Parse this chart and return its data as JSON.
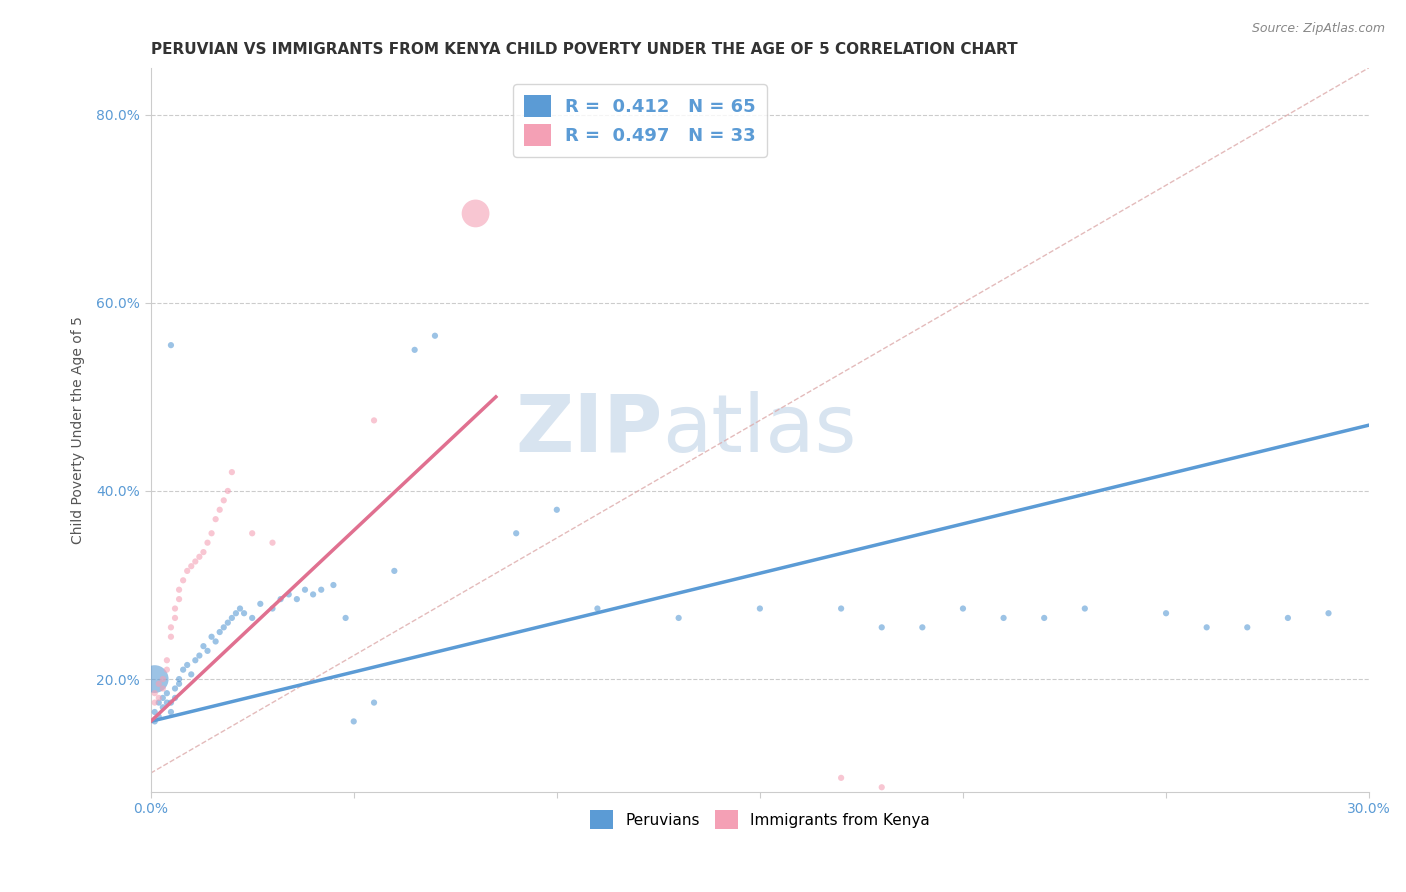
{
  "title": "PERUVIAN VS IMMIGRANTS FROM KENYA CHILD POVERTY UNDER THE AGE OF 5 CORRELATION CHART",
  "source": "Source: ZipAtlas.com",
  "xlabel": "",
  "ylabel": "Child Poverty Under the Age of 5",
  "xlim": [
    0.0,
    0.3
  ],
  "ylim": [
    0.08,
    0.85
  ],
  "xticks": [
    0.0,
    0.05,
    0.1,
    0.15,
    0.2,
    0.25,
    0.3
  ],
  "xticklabels": [
    "0.0%",
    "",
    "",
    "",
    "",
    "",
    "30.0%"
  ],
  "yticks": [
    0.2,
    0.4,
    0.6,
    0.8
  ],
  "yticklabels": [
    "20.0%",
    "40.0%",
    "60.0%",
    "80.0%"
  ],
  "R_blue": 0.412,
  "N_blue": 65,
  "R_pink": 0.497,
  "N_pink": 33,
  "blue_color": "#5b9bd5",
  "pink_color": "#f4a0b5",
  "pink_line_color": "#e07090",
  "blue_scatter": {
    "x": [
      0.001,
      0.001,
      0.002,
      0.002,
      0.003,
      0.003,
      0.004,
      0.004,
      0.005,
      0.005,
      0.006,
      0.006,
      0.007,
      0.007,
      0.008,
      0.009,
      0.01,
      0.011,
      0.012,
      0.013,
      0.014,
      0.015,
      0.016,
      0.017,
      0.018,
      0.019,
      0.02,
      0.021,
      0.022,
      0.023,
      0.025,
      0.027,
      0.03,
      0.032,
      0.034,
      0.036,
      0.038,
      0.04,
      0.042,
      0.045,
      0.048,
      0.05,
      0.055,
      0.06,
      0.065,
      0.07,
      0.09,
      0.1,
      0.11,
      0.13,
      0.15,
      0.17,
      0.18,
      0.19,
      0.2,
      0.21,
      0.22,
      0.23,
      0.25,
      0.26,
      0.27,
      0.28,
      0.29,
      0.005,
      0.001
    ],
    "y": [
      0.155,
      0.165,
      0.16,
      0.175,
      0.17,
      0.18,
      0.175,
      0.185,
      0.165,
      0.175,
      0.18,
      0.19,
      0.195,
      0.2,
      0.21,
      0.215,
      0.205,
      0.22,
      0.225,
      0.235,
      0.23,
      0.245,
      0.24,
      0.25,
      0.255,
      0.26,
      0.265,
      0.27,
      0.275,
      0.27,
      0.265,
      0.28,
      0.275,
      0.285,
      0.29,
      0.285,
      0.295,
      0.29,
      0.295,
      0.3,
      0.265,
      0.155,
      0.175,
      0.315,
      0.55,
      0.565,
      0.355,
      0.38,
      0.275,
      0.265,
      0.275,
      0.275,
      0.255,
      0.255,
      0.275,
      0.265,
      0.265,
      0.275,
      0.27,
      0.255,
      0.255,
      0.265,
      0.27,
      0.555,
      0.2
    ],
    "sizes": [
      20,
      20,
      20,
      20,
      20,
      20,
      20,
      20,
      20,
      20,
      20,
      20,
      20,
      20,
      20,
      20,
      20,
      20,
      20,
      20,
      20,
      20,
      20,
      20,
      20,
      20,
      20,
      20,
      20,
      20,
      20,
      20,
      20,
      20,
      20,
      20,
      20,
      20,
      20,
      20,
      20,
      20,
      20,
      20,
      20,
      20,
      20,
      20,
      20,
      20,
      20,
      20,
      20,
      20,
      20,
      20,
      20,
      20,
      20,
      20,
      20,
      20,
      20,
      20,
      400
    ]
  },
  "pink_scatter": {
    "x": [
      0.001,
      0.001,
      0.002,
      0.002,
      0.003,
      0.003,
      0.004,
      0.004,
      0.005,
      0.005,
      0.006,
      0.006,
      0.007,
      0.007,
      0.008,
      0.009,
      0.01,
      0.011,
      0.012,
      0.013,
      0.014,
      0.015,
      0.016,
      0.017,
      0.018,
      0.019,
      0.02,
      0.025,
      0.03,
      0.055,
      0.17,
      0.18,
      0.08
    ],
    "y": [
      0.175,
      0.185,
      0.18,
      0.195,
      0.19,
      0.2,
      0.21,
      0.22,
      0.245,
      0.255,
      0.265,
      0.275,
      0.285,
      0.295,
      0.305,
      0.315,
      0.32,
      0.325,
      0.33,
      0.335,
      0.345,
      0.355,
      0.37,
      0.38,
      0.39,
      0.4,
      0.42,
      0.355,
      0.345,
      0.475,
      0.095,
      0.085,
      0.695
    ],
    "sizes": [
      20,
      20,
      20,
      20,
      20,
      20,
      20,
      20,
      20,
      20,
      20,
      20,
      20,
      20,
      20,
      20,
      20,
      20,
      20,
      20,
      20,
      20,
      20,
      20,
      20,
      20,
      20,
      20,
      20,
      20,
      20,
      20,
      400
    ]
  },
  "blue_line": {
    "x0": 0.0,
    "y0": 0.155,
    "x1": 0.3,
    "y1": 0.47
  },
  "pink_line": {
    "x0": 0.0,
    "y0": 0.155,
    "x1": 0.085,
    "y1": 0.5
  },
  "diag_line": {
    "x0": 0.0,
    "y0": 0.1,
    "x1": 0.3,
    "y1": 0.85
  },
  "watermark_zip": "ZIP",
  "watermark_atlas": "atlas",
  "watermark_color": "#d8e4f0",
  "background_color": "#ffffff",
  "grid_color": "#cccccc",
  "axis_color": "#5b9bd5",
  "title_fontsize": 11,
  "axis_label_fontsize": 10,
  "tick_fontsize": 10
}
